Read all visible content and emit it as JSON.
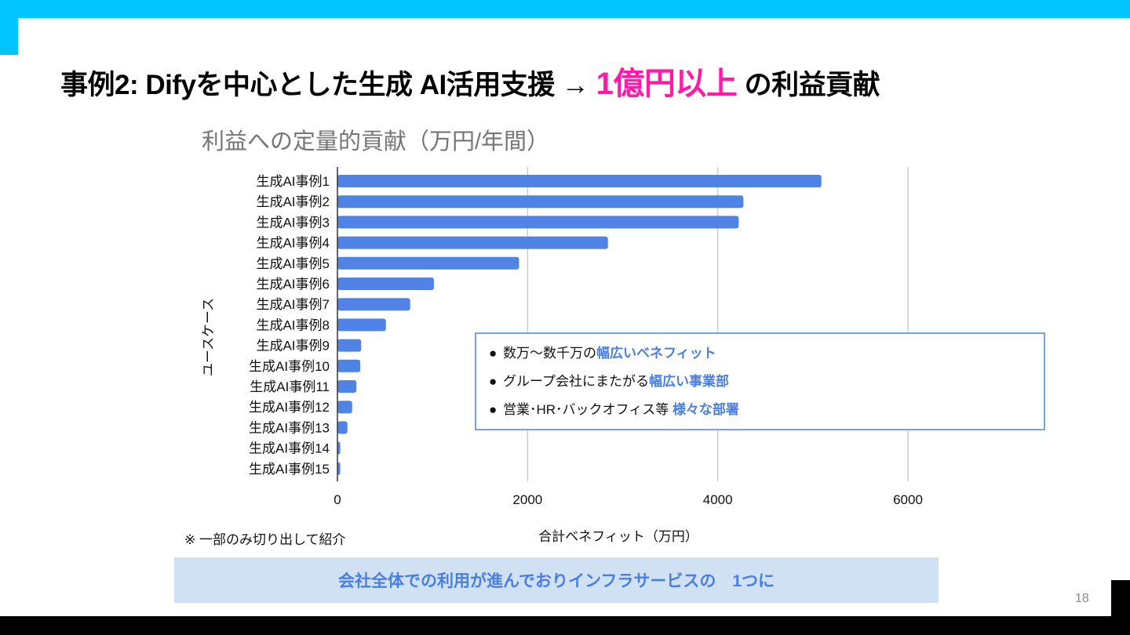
{
  "slide": {
    "title_prefix": "事例2: Difyを中心とした生成 AI活用支援 → ",
    "title_highlight": "1億円以上",
    "title_suffix": " の利益貢献",
    "highlight_color": "#ff1aa8",
    "accent_color": "#00c4ff",
    "page_number": "18"
  },
  "callout": {
    "items": [
      {
        "bullet": "●",
        "text": "数万〜数千万の",
        "emphasis": "幅広いベネフィット"
      },
      {
        "bullet": "●",
        "text": "グループ会社にまたがる",
        "emphasis": "幅広い事業部"
      },
      {
        "bullet": "●",
        "text": "営業･HR･バックオフィス等 ",
        "emphasis": "様々な部署"
      }
    ]
  },
  "footnote": "※ 一部のみ切り出して紹介",
  "banner": {
    "text": "会社全体での利用が進んでおりインフラサービスの　1つに"
  },
  "chart_data": {
    "type": "bar",
    "orientation": "horizontal",
    "title": "利益への定量的貢献（万円/年間）",
    "xlabel": "合計ベネフィット（万円）",
    "ylabel": "ユースケース",
    "categories": [
      "生成AI事例1",
      "生成AI事例2",
      "生成AI事例3",
      "生成AI事例4",
      "生成AI事例5",
      "生成AI事例6",
      "生成AI事例7",
      "生成AI事例8",
      "生成AI事例9",
      "生成AI事例10",
      "生成AI事例11",
      "生成AI事例12",
      "生成AI事例13",
      "生成AI事例14",
      "生成AI事例15"
    ],
    "values": [
      5090,
      4270,
      4220,
      2845,
      1910,
      1015,
      765,
      510,
      250,
      240,
      200,
      155,
      105,
      30,
      30
    ],
    "xlim": [
      0,
      7000
    ],
    "xticks": [
      0,
      2000,
      4000,
      6000
    ],
    "xtick_labels": [
      "0",
      "2000",
      "4000",
      "6000"
    ],
    "grid": true,
    "bar_color": "#5083e6",
    "legend": "none"
  }
}
